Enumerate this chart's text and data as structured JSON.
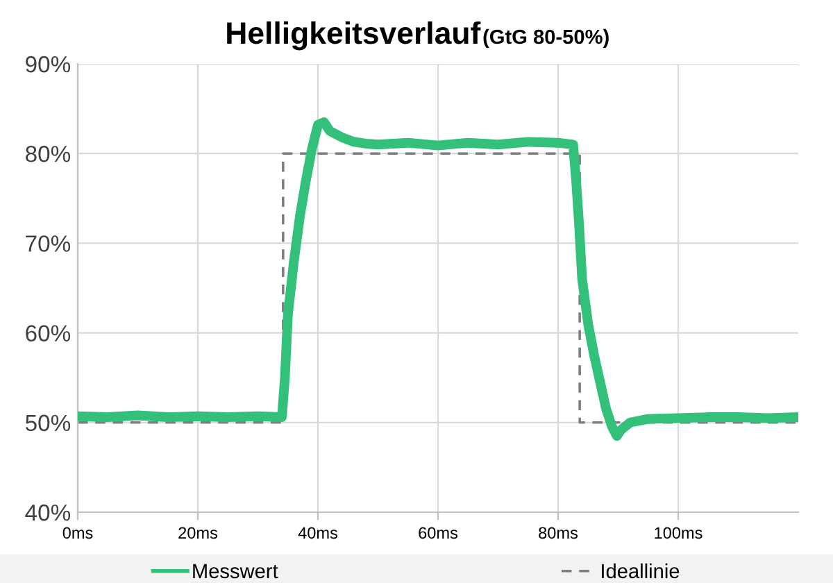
{
  "chart_data": {
    "type": "line",
    "title": "Helligkeitsverlauf",
    "subtitle": "(GtG 80-50%)",
    "xlim": [
      0,
      120
    ],
    "xticks": [
      {
        "value": 0,
        "label": "0ms"
      },
      {
        "value": 20,
        "label": "20ms"
      },
      {
        "value": 40,
        "label": "40ms"
      },
      {
        "value": 60,
        "label": "60ms"
      },
      {
        "value": 80,
        "label": "80ms"
      },
      {
        "value": 100,
        "label": "100ms"
      }
    ],
    "ylim": [
      40,
      90
    ],
    "yticks": [
      {
        "value": 40,
        "label": "40%"
      },
      {
        "value": 50,
        "label": "50%"
      },
      {
        "value": 60,
        "label": "60%"
      },
      {
        "value": 70,
        "label": "70%"
      },
      {
        "value": 80,
        "label": "80%"
      },
      {
        "value": 90,
        "label": "90%"
      }
    ],
    "grid": true,
    "legend": "bottom",
    "series": [
      {
        "name": "Messwert",
        "color": "#33c07a",
        "line_style": "solid",
        "x": [
          0,
          5,
          10,
          15,
          20,
          25,
          30,
          34,
          34.5,
          35,
          36,
          37,
          38,
          39,
          40,
          41,
          42,
          44,
          46,
          48,
          50,
          55,
          60,
          65,
          70,
          75,
          80,
          82.5,
          83,
          83.5,
          84,
          85,
          86,
          87,
          88,
          89,
          89.8,
          90.5,
          92,
          95,
          100,
          105,
          110,
          115,
          120
        ],
        "values": [
          50.7,
          50.6,
          50.8,
          50.6,
          50.7,
          50.6,
          50.7,
          50.6,
          55,
          62,
          68,
          73,
          77,
          80.5,
          83.2,
          83.5,
          82.5,
          81.8,
          81.3,
          81.1,
          81,
          81.2,
          80.9,
          81.2,
          81,
          81.3,
          81.2,
          81,
          77,
          72,
          66,
          61,
          57.5,
          54.5,
          51.5,
          49.5,
          48.5,
          49.2,
          50,
          50.4,
          50.5,
          50.6,
          50.6,
          50.5,
          50.6
        ]
      },
      {
        "name": "Ideallinie",
        "color": "#7f7f7f",
        "line_style": "dashed",
        "x": [
          0,
          34.2,
          34.2,
          83.6,
          83.6,
          120
        ],
        "values": [
          50,
          50,
          80,
          80,
          50,
          50
        ]
      }
    ]
  }
}
